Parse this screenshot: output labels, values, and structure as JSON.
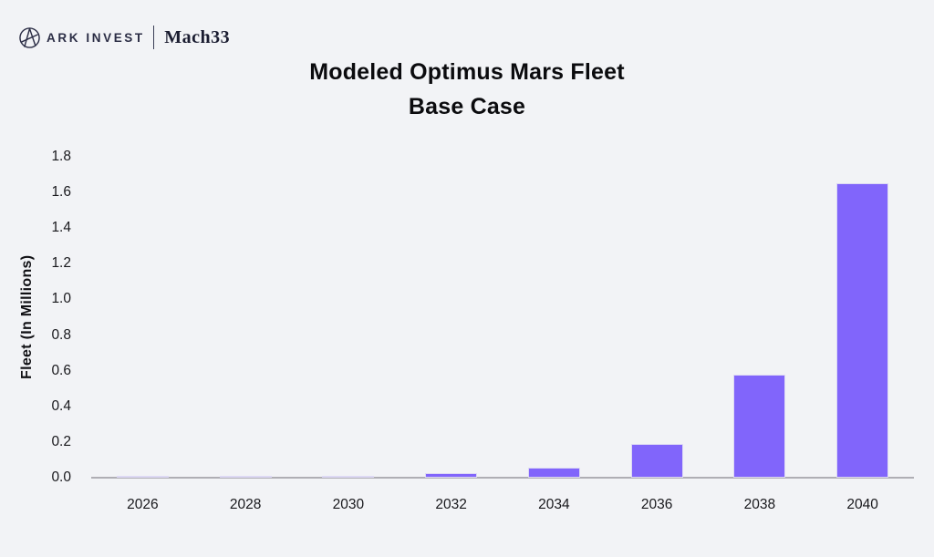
{
  "header": {
    "brand": {
      "logo_icon": "ark-invest-circle-logo",
      "ark_label": "ARK INVEST",
      "mach_label": "Mach33"
    }
  },
  "chart_data": {
    "type": "bar",
    "title": "Modeled Optimus Mars Fleet",
    "subtitle": "Base Case",
    "ylabel": "Fleet (In Millions)",
    "xlabel": "",
    "categories": [
      "2026",
      "2028",
      "2030",
      "2032",
      "2034",
      "2036",
      "2038",
      "2040"
    ],
    "values": [
      0.002,
      0.008,
      0.011,
      0.025,
      0.057,
      0.19,
      0.58,
      1.65
    ],
    "ylim": [
      0,
      1.8
    ],
    "yticks": [
      0.0,
      0.2,
      0.4,
      0.6,
      0.8,
      1.0,
      1.2,
      1.4,
      1.6,
      1.8
    ],
    "ytick_labels": [
      "0.0",
      "0.2",
      "0.4",
      "0.6",
      "0.8",
      "1.0",
      "1.2",
      "1.4",
      "1.6",
      "1.8"
    ],
    "grid": false,
    "legend": "none",
    "colors": {
      "bar": "#8165FB",
      "bar_edge": "#DDD9F4",
      "axis_line": "#AFAEB4",
      "background": "#F2F3F6",
      "text": "#101014",
      "brand_navy": "#2B2D45"
    }
  }
}
